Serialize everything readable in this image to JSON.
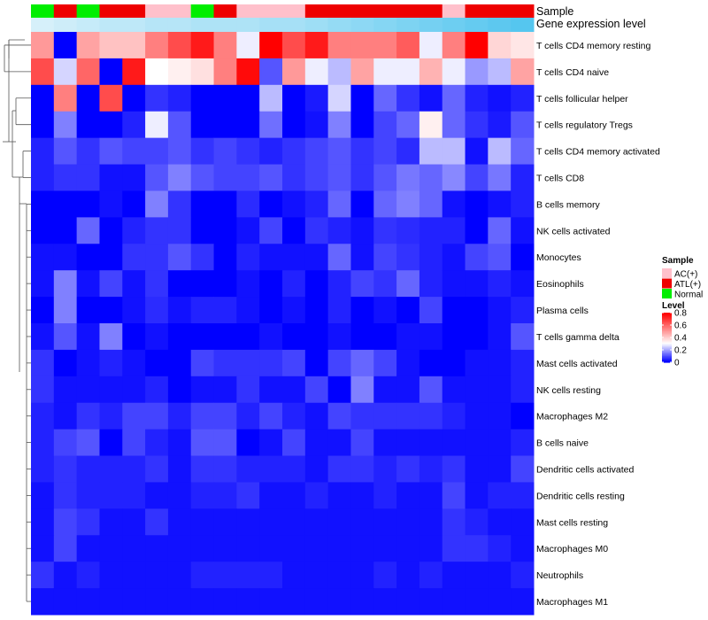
{
  "chart_data": {
    "type": "heatmap",
    "annotation_rows": [
      "Sample",
      "Gene expression level"
    ],
    "sample_groups": [
      "Normal",
      "ATL(+)",
      "Normal",
      "ATL(+)",
      "ATL(+)",
      "AC(+)",
      "AC(+)",
      "Normal",
      "ATL(+)",
      "AC(+)",
      "AC(+)",
      "AC(+)",
      "ATL(+)",
      "ATL(+)",
      "ATL(+)",
      "ATL(+)",
      "ATL(+)",
      "ATL(+)",
      "AC(+)",
      "ATL(+)",
      "ATL(+)",
      "ATL(+)"
    ],
    "gene_expression_level": [
      0.15,
      0.2,
      0.25,
      0.3,
      0.3,
      0.35,
      0.35,
      0.4,
      0.4,
      0.4,
      0.45,
      0.45,
      0.5,
      0.55,
      0.6,
      0.65,
      0.7,
      0.75,
      0.8,
      0.85,
      0.9,
      0.95
    ],
    "rows": [
      "T cells CD4 memory resting",
      "T cells CD4 naive",
      "T cells follicular helper",
      "T cells regulatory  Tregs",
      "T cells CD4 memory activated",
      "T cells CD8",
      "B cells memory",
      "NK cells activated",
      "Monocytes",
      "Eosinophils",
      "Plasma cells",
      "T cells gamma delta",
      "Mast cells activated",
      "NK cells resting",
      "Macrophages M2",
      "B cells naive",
      "Dendritic cells activated",
      "Dendritic cells resting",
      "Mast cells resting",
      "Macrophages M0",
      "Neutrophils",
      "Macrophages M1"
    ],
    "values": [
      [
        0.5,
        0.0,
        0.48,
        0.42,
        0.42,
        0.55,
        0.65,
        0.75,
        0.55,
        0.28,
        0.8,
        0.65,
        0.75,
        0.55,
        0.55,
        0.55,
        0.62,
        0.28,
        0.55,
        0.8,
        0.38,
        0.35
      ],
      [
        0.65,
        0.25,
        0.6,
        0.0,
        0.75,
        0.3,
        0.33,
        0.36,
        0.55,
        0.78,
        0.1,
        0.5,
        0.28,
        0.22,
        0.48,
        0.28,
        0.28,
        0.45,
        0.28,
        0.18,
        0.22,
        0.48
      ],
      [
        0.0,
        0.55,
        0.0,
        0.65,
        0.0,
        0.06,
        0.04,
        0.0,
        0.0,
        0.0,
        0.22,
        0.0,
        0.03,
        0.25,
        0.0,
        0.12,
        0.06,
        0.02,
        0.12,
        0.04,
        0.02,
        0.04
      ],
      [
        0.0,
        0.15,
        0.0,
        0.0,
        0.04,
        0.28,
        0.1,
        0.0,
        0.0,
        0.0,
        0.13,
        0.0,
        0.02,
        0.15,
        0.0,
        0.08,
        0.12,
        0.33,
        0.12,
        0.06,
        0.03,
        0.1
      ],
      [
        0.04,
        0.1,
        0.06,
        0.1,
        0.08,
        0.08,
        0.1,
        0.06,
        0.08,
        0.06,
        0.04,
        0.06,
        0.08,
        0.1,
        0.06,
        0.08,
        0.05,
        0.22,
        0.22,
        0.02,
        0.22,
        0.12
      ],
      [
        0.04,
        0.06,
        0.06,
        0.02,
        0.02,
        0.1,
        0.15,
        0.1,
        0.08,
        0.08,
        0.1,
        0.06,
        0.08,
        0.1,
        0.06,
        0.1,
        0.14,
        0.12,
        0.16,
        0.08,
        0.14,
        0.04
      ],
      [
        0.0,
        0.0,
        0.0,
        0.02,
        0.0,
        0.15,
        0.06,
        0.0,
        0.0,
        0.05,
        0.0,
        0.02,
        0.04,
        0.12,
        0.0,
        0.12,
        0.15,
        0.12,
        0.02,
        0.0,
        0.02,
        0.04
      ],
      [
        0.0,
        0.0,
        0.12,
        0.0,
        0.04,
        0.06,
        0.06,
        0.0,
        0.0,
        0.02,
        0.08,
        0.0,
        0.06,
        0.04,
        0.02,
        0.06,
        0.05,
        0.04,
        0.04,
        0.0,
        0.12,
        0.02
      ],
      [
        0.02,
        0.02,
        0.0,
        0.0,
        0.06,
        0.06,
        0.1,
        0.06,
        0.0,
        0.04,
        0.02,
        0.02,
        0.02,
        0.12,
        0.02,
        0.08,
        0.06,
        0.04,
        0.02,
        0.08,
        0.1,
        0.0
      ],
      [
        0.02,
        0.15,
        0.02,
        0.08,
        0.02,
        0.06,
        0.0,
        0.0,
        0.0,
        0.02,
        0.0,
        0.04,
        0.0,
        0.04,
        0.08,
        0.06,
        0.12,
        0.04,
        0.02,
        0.02,
        0.04,
        0.02
      ],
      [
        0.0,
        0.15,
        0.0,
        0.0,
        0.02,
        0.05,
        0.02,
        0.04,
        0.04,
        0.02,
        0.0,
        0.02,
        0.0,
        0.04,
        0.0,
        0.02,
        0.0,
        0.08,
        0.0,
        0.0,
        0.02,
        0.04
      ],
      [
        0.02,
        0.1,
        0.02,
        0.15,
        0.0,
        0.02,
        0.0,
        0.0,
        0.0,
        0.0,
        0.02,
        0.0,
        0.0,
        0.02,
        0.0,
        0.0,
        0.02,
        0.02,
        0.0,
        0.0,
        0.02,
        0.1
      ],
      [
        0.06,
        0.0,
        0.02,
        0.04,
        0.02,
        0.0,
        0.0,
        0.08,
        0.06,
        0.06,
        0.06,
        0.08,
        0.0,
        0.08,
        0.12,
        0.08,
        0.02,
        0.0,
        0.0,
        0.02,
        0.02,
        0.04
      ],
      [
        0.06,
        0.02,
        0.02,
        0.02,
        0.02,
        0.04,
        0.0,
        0.02,
        0.02,
        0.06,
        0.02,
        0.02,
        0.08,
        0.0,
        0.15,
        0.02,
        0.02,
        0.1,
        0.02,
        0.02,
        0.02,
        0.04
      ],
      [
        0.04,
        0.02,
        0.06,
        0.04,
        0.08,
        0.08,
        0.04,
        0.08,
        0.08,
        0.04,
        0.08,
        0.04,
        0.02,
        0.08,
        0.06,
        0.06,
        0.06,
        0.06,
        0.04,
        0.02,
        0.02,
        0.0
      ],
      [
        0.04,
        0.08,
        0.1,
        0.0,
        0.08,
        0.04,
        0.02,
        0.1,
        0.1,
        0.0,
        0.02,
        0.08,
        0.02,
        0.02,
        0.08,
        0.02,
        0.02,
        0.02,
        0.02,
        0.02,
        0.02,
        0.04
      ],
      [
        0.04,
        0.06,
        0.04,
        0.04,
        0.04,
        0.06,
        0.02,
        0.06,
        0.06,
        0.04,
        0.04,
        0.04,
        0.02,
        0.06,
        0.06,
        0.04,
        0.06,
        0.04,
        0.06,
        0.02,
        0.02,
        0.08
      ],
      [
        0.02,
        0.06,
        0.04,
        0.04,
        0.04,
        0.02,
        0.02,
        0.04,
        0.04,
        0.06,
        0.02,
        0.02,
        0.04,
        0.02,
        0.02,
        0.04,
        0.02,
        0.02,
        0.08,
        0.02,
        0.04,
        0.04
      ],
      [
        0.02,
        0.08,
        0.06,
        0.02,
        0.02,
        0.06,
        0.02,
        0.02,
        0.02,
        0.02,
        0.02,
        0.02,
        0.02,
        0.02,
        0.02,
        0.02,
        0.02,
        0.02,
        0.06,
        0.04,
        0.02,
        0.02
      ],
      [
        0.02,
        0.08,
        0.02,
        0.02,
        0.02,
        0.02,
        0.02,
        0.02,
        0.02,
        0.02,
        0.02,
        0.02,
        0.02,
        0.02,
        0.02,
        0.02,
        0.02,
        0.02,
        0.06,
        0.06,
        0.04,
        0.02
      ],
      [
        0.06,
        0.02,
        0.04,
        0.02,
        0.02,
        0.02,
        0.02,
        0.04,
        0.04,
        0.04,
        0.04,
        0.02,
        0.02,
        0.02,
        0.02,
        0.04,
        0.02,
        0.04,
        0.02,
        0.02,
        0.02,
        0.04
      ],
      [
        0.02,
        0.02,
        0.02,
        0.02,
        0.02,
        0.02,
        0.02,
        0.02,
        0.02,
        0.02,
        0.02,
        0.02,
        0.02,
        0.02,
        0.02,
        0.02,
        0.02,
        0.02,
        0.02,
        0.02,
        0.02,
        0.02
      ]
    ],
    "color_scale": {
      "low": "#0000FF",
      "mid": "#FFFFFF",
      "high": "#FF0000",
      "mid_value": 0.3,
      "min": 0,
      "max": 0.8
    },
    "group_colors": {
      "AC(+)": "#FFC0CB",
      "ATL(+)": "#EE0000",
      "Normal": "#00EE00"
    },
    "expression_colors": {
      "low": "#EEF8FC",
      "high": "#4DC3EE"
    },
    "legend": {
      "sample_title": "Sample",
      "sample_entries": [
        "AC(+)",
        "ATL(+)",
        "Normal"
      ],
      "level_title": "Level",
      "level_ticks": [
        "0.8",
        "0.6",
        "0.4",
        "0.2",
        "0"
      ],
      "level_tick_values": [
        0.8,
        0.6,
        0.4,
        0.2,
        0
      ]
    },
    "dendrogram": "row-clustering"
  }
}
